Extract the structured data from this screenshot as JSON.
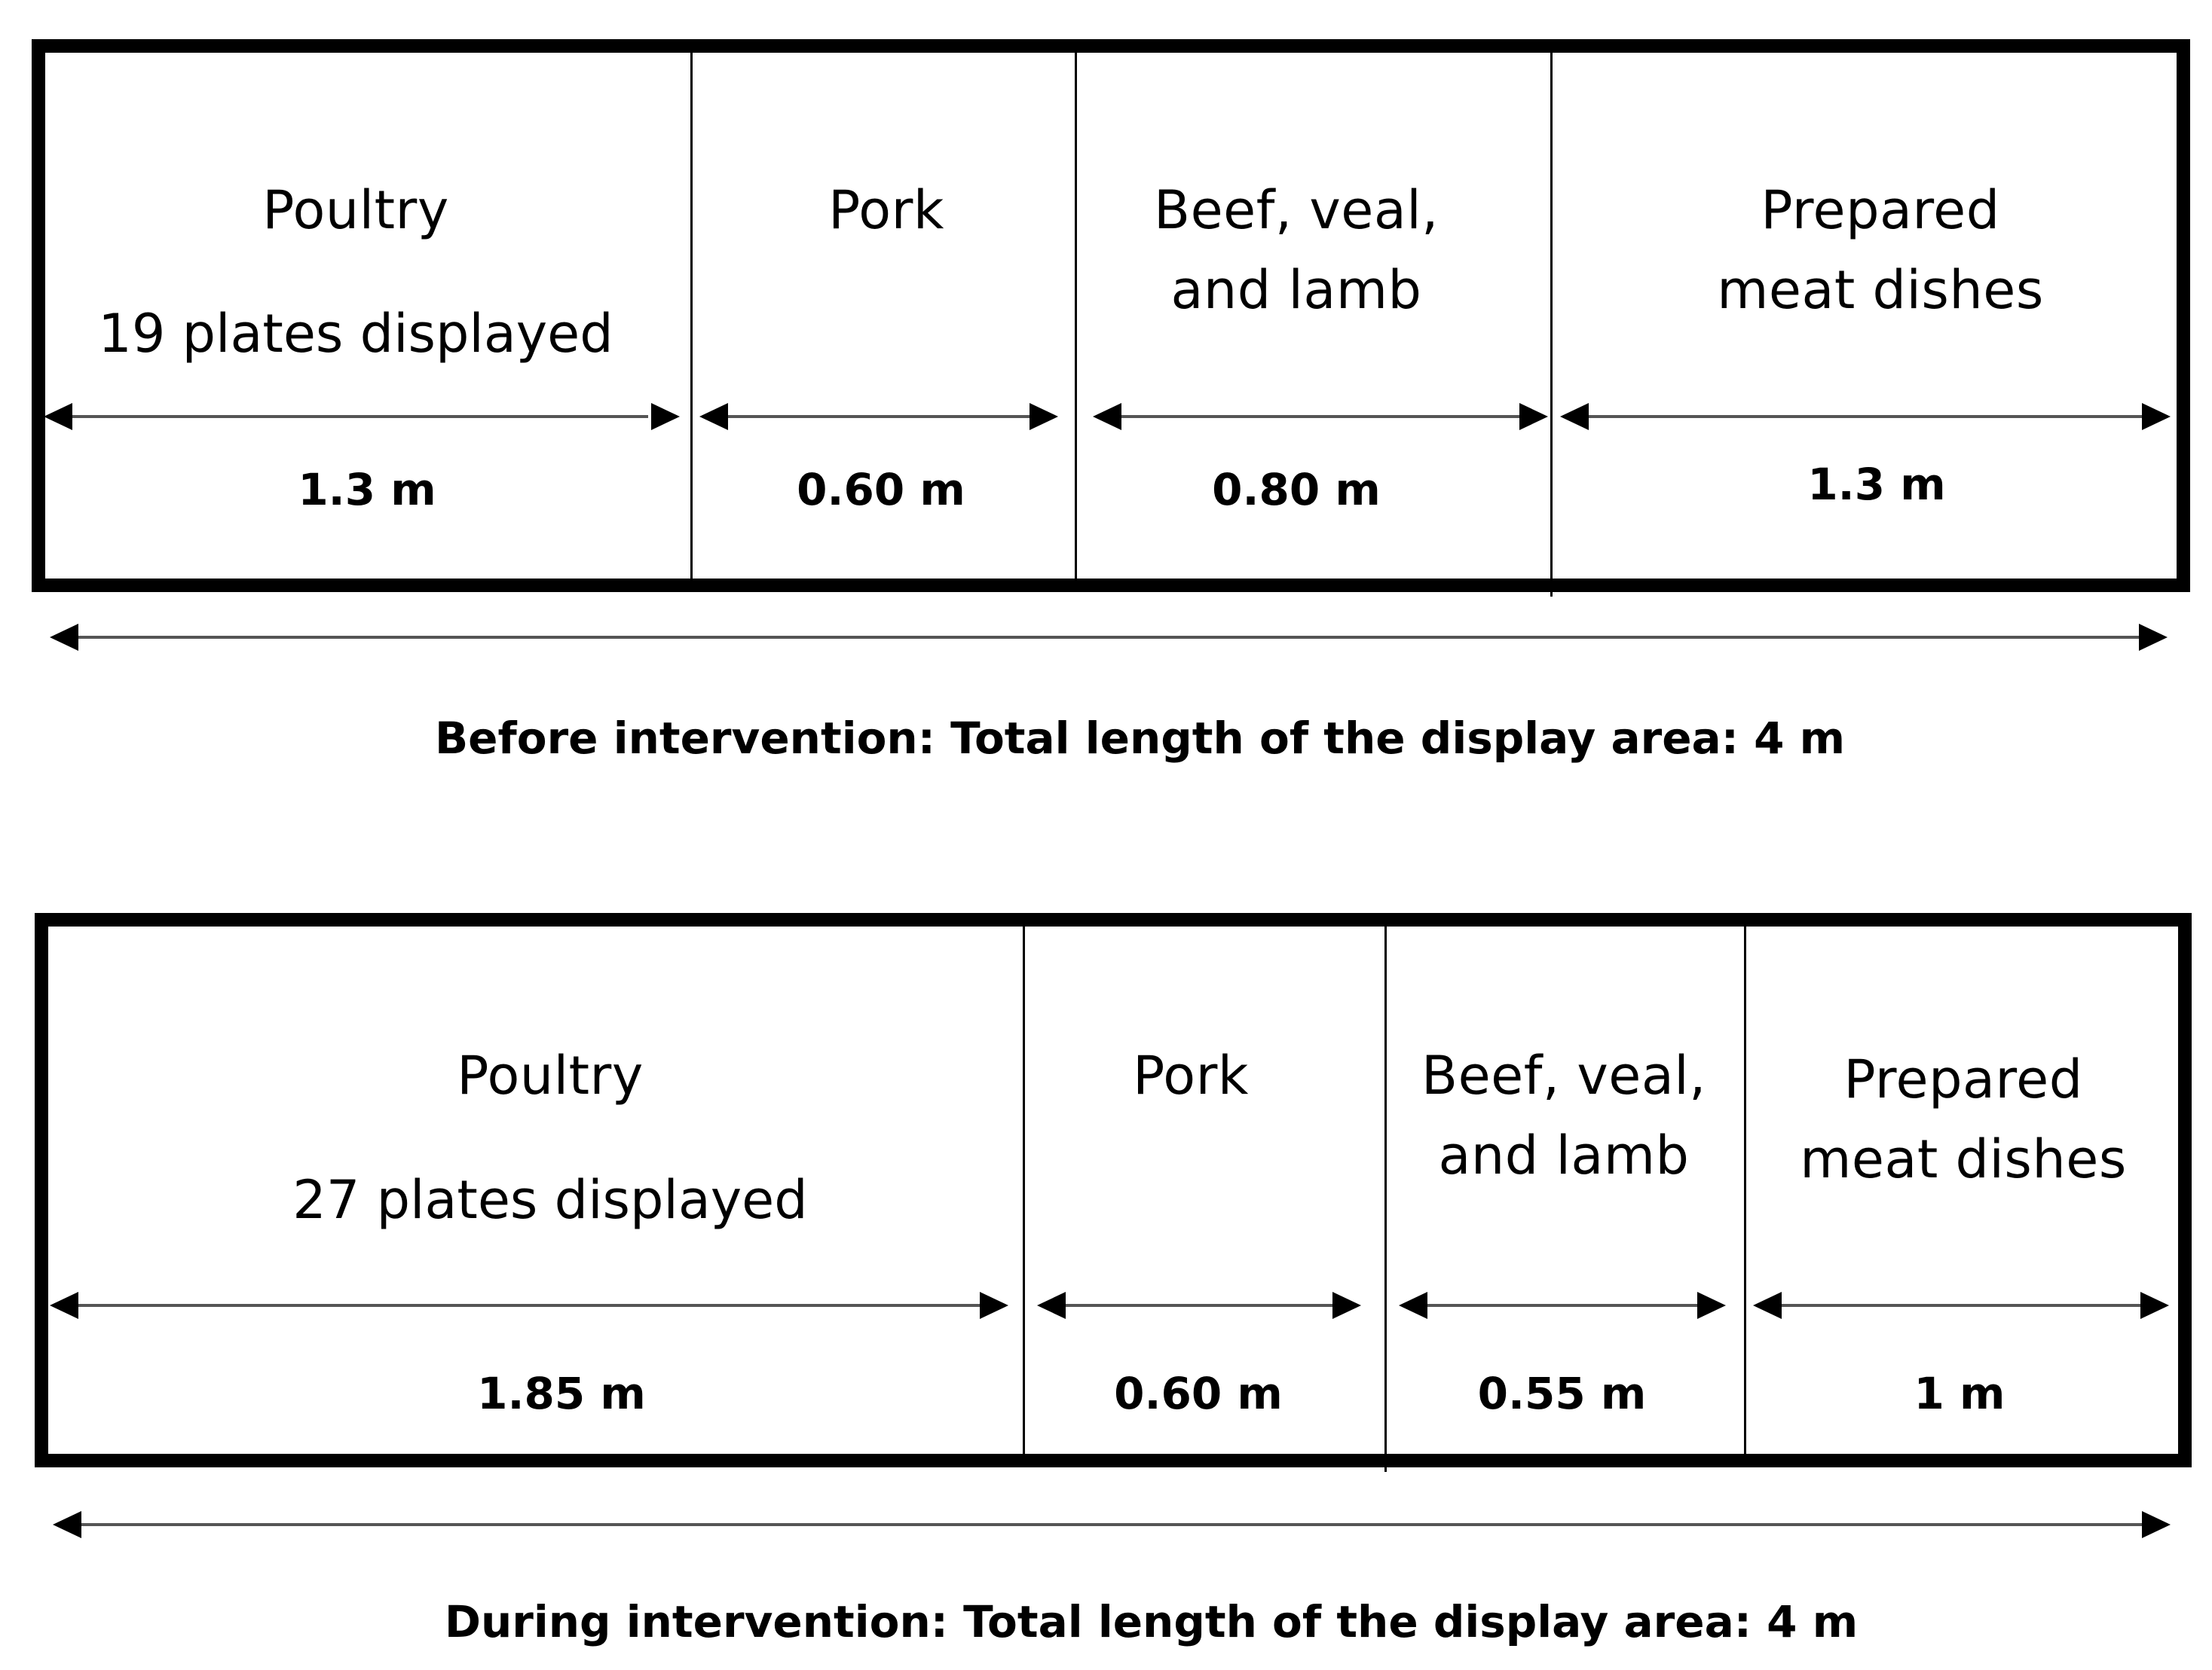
{
  "before": {
    "sections": [
      {
        "name_lines": [
          "Poultry"
        ],
        "note": "19 plates displayed",
        "length": "1.3 m"
      },
      {
        "name_lines": [
          "Pork"
        ],
        "note": "",
        "length": "0.60 m"
      },
      {
        "name_lines": [
          "Beef, veal,",
          "and lamb"
        ],
        "note": "",
        "length": "0.80 m"
      },
      {
        "name_lines": [
          "Prepared",
          "meat dishes"
        ],
        "note": "",
        "length": "1.3 m"
      }
    ],
    "caption": "Before intervention: Total length of the display area: 4 m"
  },
  "during": {
    "sections": [
      {
        "name_lines": [
          "Poultry"
        ],
        "note": "27 plates displayed",
        "length": "1.85 m"
      },
      {
        "name_lines": [
          "Pork"
        ],
        "note": "",
        "length": "0.60 m"
      },
      {
        "name_lines": [
          "Beef, veal,",
          "and lamb"
        ],
        "note": "",
        "length": "0.55 m"
      },
      {
        "name_lines": [
          "Prepared",
          "meat dishes"
        ],
        "note": "",
        "length": "1 m"
      }
    ],
    "caption": "During intervention: Total length of the display area: 4 m"
  },
  "colors": {
    "line": "#000000",
    "background": "#ffffff"
  }
}
